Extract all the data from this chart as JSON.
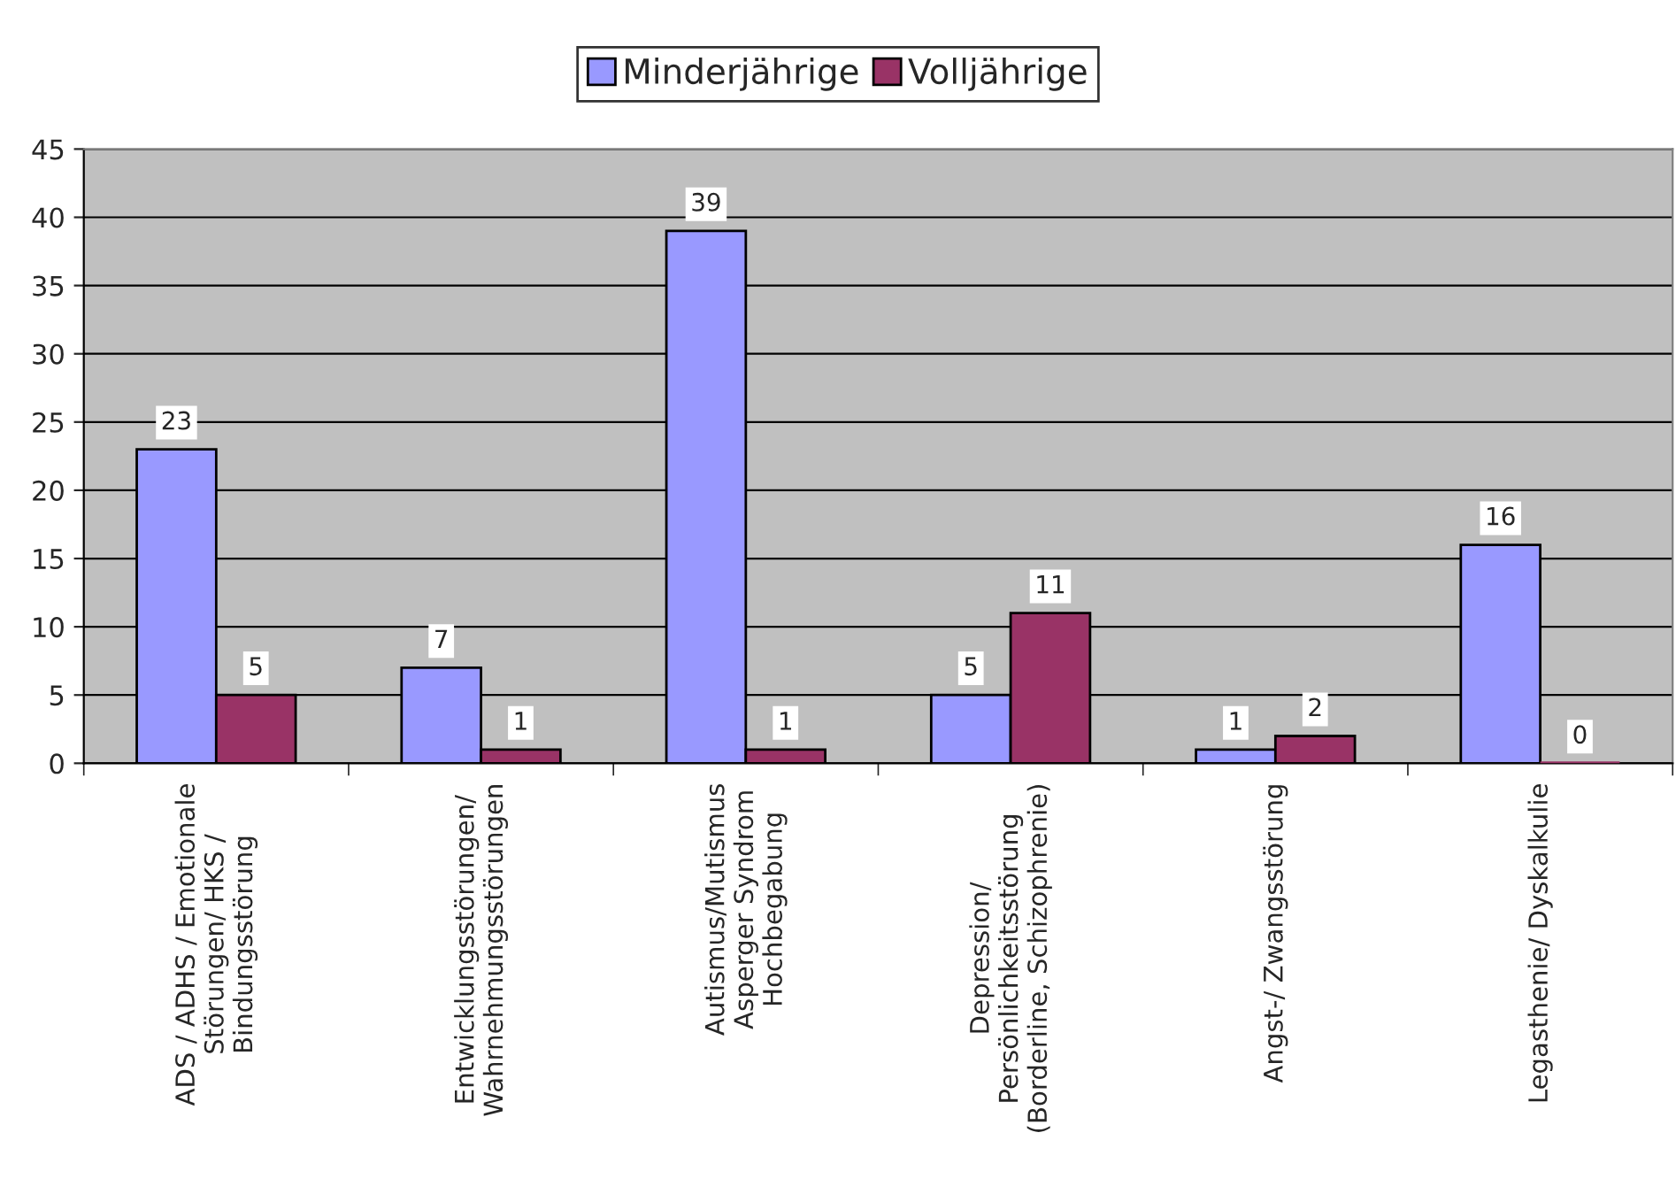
{
  "chart_data": {
    "type": "bar",
    "categories": [
      "ADS / ADHS / Emotionale\nStörungen/ HKS /\nBindungsstörung",
      "Entwicklungsstörungen/\nWahrnehmungsstörungen",
      "Autismus/Mutismus\nAsperger Syndrom\nHochbegabung",
      "Depression/\nPersönlichkeitsstörung\n(Borderline, Schizophrenie)",
      "Angst-/ Zwangsstörung",
      "Legasthenie/ Dyskalkulie"
    ],
    "series": [
      {
        "name": "Minderjährige",
        "color": "#9999ff",
        "values": [
          23,
          7,
          39,
          5,
          1,
          16
        ]
      },
      {
        "name": "Volljährige",
        "color": "#993366",
        "values": [
          5,
          1,
          1,
          11,
          2,
          0
        ]
      }
    ],
    "ylim": [
      0,
      45
    ],
    "yticks": [
      0,
      5,
      10,
      15,
      20,
      25,
      30,
      35,
      40,
      45
    ],
    "grid": "y",
    "legend": "top",
    "data_labels": true
  }
}
